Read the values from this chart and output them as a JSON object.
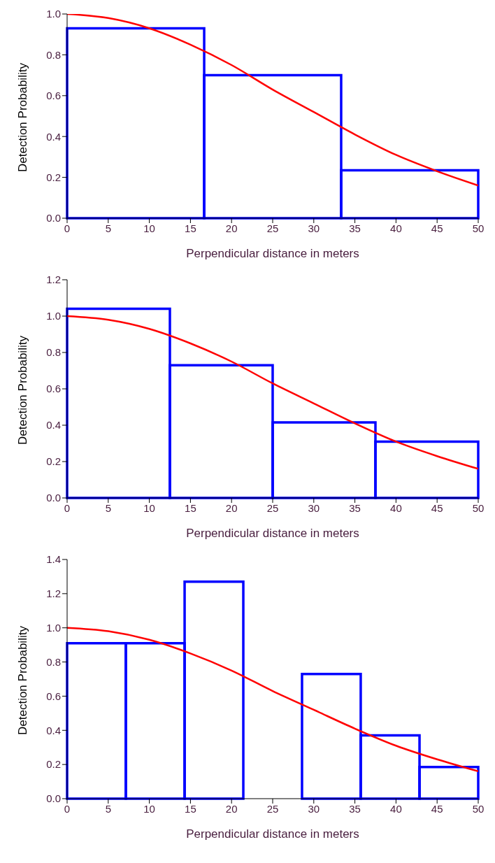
{
  "chart_data": [
    {
      "type": "histogram",
      "xlabel": "Perpendicular distance in meters",
      "ylabel": "Detection Probability",
      "xlim": [
        0,
        50
      ],
      "xticks": [
        0,
        5,
        10,
        15,
        20,
        25,
        30,
        35,
        40,
        45,
        50
      ],
      "ylim": [
        0,
        1
      ],
      "yticks": [
        {
          "value": 0,
          "label": "0.0"
        },
        {
          "value": 0.2,
          "label": "0.2"
        },
        {
          "value": 0.4,
          "label": "0.4"
        },
        {
          "value": 0.6,
          "label": "0.6"
        },
        {
          "value": 0.8,
          "label": "0.8"
        },
        {
          "value": 1,
          "label": "1.0"
        }
      ],
      "grid": false,
      "legend": false,
      "series": [
        {
          "color": "#0000ff",
          "bins": [
            0,
            16.67,
            33.33,
            50
          ],
          "values": [
            0.93,
            0.7,
            0.235
          ]
        },
        {
          "type": "line",
          "color": "#ff0000",
          "x": [
            0,
            5,
            10,
            15,
            20,
            25,
            30,
            35,
            40,
            45,
            50
          ],
          "values": [
            1.0,
            0.98,
            0.93,
            0.85,
            0.75,
            0.63,
            0.52,
            0.41,
            0.31,
            0.23,
            0.16
          ]
        }
      ]
    },
    {
      "type": "histogram",
      "xlabel": "Perpendicular distance in meters",
      "ylabel": "Detection Probability",
      "xlim": [
        0,
        50
      ],
      "xticks": [
        0,
        5,
        10,
        15,
        20,
        25,
        30,
        35,
        40,
        45,
        50
      ],
      "ylim": [
        0,
        1.2
      ],
      "yticks": [
        {
          "value": 0,
          "label": "0.0"
        },
        {
          "value": 0.2,
          "label": "0.2"
        },
        {
          "value": 0.4,
          "label": "0.4"
        },
        {
          "value": 0.6,
          "label": "0.6"
        },
        {
          "value": 0.8,
          "label": "0.8"
        },
        {
          "value": 1,
          "label": "1.0"
        },
        {
          "value": 1.2,
          "label": "1.2"
        }
      ],
      "grid": false,
      "legend": false,
      "series": [
        {
          "color": "#0000ff",
          "bins": [
            0,
            12.5,
            25,
            37.5,
            50
          ],
          "values": [
            1.04,
            0.73,
            0.415,
            0.31
          ]
        },
        {
          "type": "line",
          "color": "#ff0000",
          "x": [
            0,
            5,
            10,
            15,
            20,
            25,
            30,
            35,
            40,
            45,
            50
          ],
          "values": [
            1.0,
            0.98,
            0.93,
            0.85,
            0.75,
            0.63,
            0.52,
            0.41,
            0.31,
            0.23,
            0.16
          ]
        }
      ]
    },
    {
      "type": "histogram",
      "xlabel": "Perpendicular distance in meters",
      "ylabel": "Detection Probability",
      "xlim": [
        0,
        50
      ],
      "xticks": [
        0,
        5,
        10,
        15,
        20,
        25,
        30,
        35,
        40,
        45,
        50
      ],
      "ylim": [
        0,
        1.4
      ],
      "yticks": [
        {
          "value": 0,
          "label": "0.0"
        },
        {
          "value": 0.2,
          "label": "0.2"
        },
        {
          "value": 0.4,
          "label": "0.4"
        },
        {
          "value": 0.6,
          "label": "0.6"
        },
        {
          "value": 0.8,
          "label": "0.8"
        },
        {
          "value": 1,
          "label": "1.0"
        },
        {
          "value": 1.2,
          "label": "1.2"
        },
        {
          "value": 1.4,
          "label": "1.4"
        }
      ],
      "grid": false,
      "legend": false,
      "series": [
        {
          "color": "#0000ff",
          "bins": [
            0,
            7.14,
            14.29,
            21.43,
            28.57,
            35.71,
            42.86,
            50
          ],
          "values": [
            0.91,
            0.91,
            1.27,
            0,
            0.73,
            0.37,
            0.185
          ]
        },
        {
          "type": "line",
          "color": "#ff0000",
          "x": [
            0,
            5,
            10,
            15,
            20,
            25,
            30,
            35,
            40,
            45,
            50
          ],
          "values": [
            1.0,
            0.98,
            0.93,
            0.85,
            0.75,
            0.63,
            0.52,
            0.41,
            0.31,
            0.23,
            0.16
          ]
        }
      ]
    }
  ]
}
